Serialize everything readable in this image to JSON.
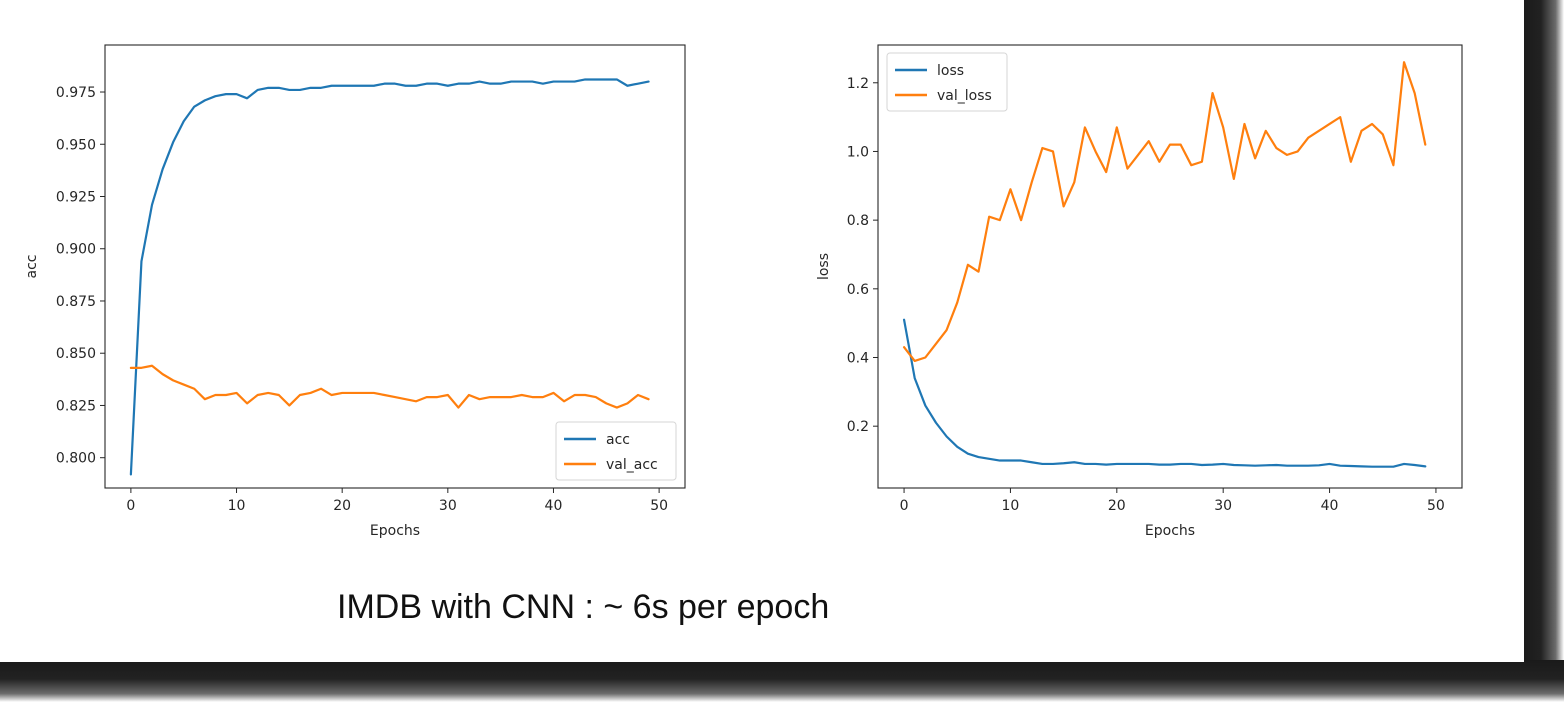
{
  "colors": {
    "series1": "#1f77b4",
    "series2": "#ff7f0e",
    "axis": "#262626"
  },
  "caption": "IMDB with CNN : ~ 6s per epoch",
  "chart_data": [
    {
      "type": "line",
      "xlabel": "Epochs",
      "ylabel": "acc",
      "xlim": [
        -2.45,
        52.45
      ],
      "ylim": [
        0.7855,
        0.9975
      ],
      "xticks": [
        0,
        10,
        20,
        30,
        40,
        50
      ],
      "yticks": [
        0.8,
        0.825,
        0.85,
        0.875,
        0.9,
        0.925,
        0.95,
        0.975
      ],
      "ytick_labels": [
        "0.800",
        "0.825",
        "0.850",
        "0.875",
        "0.900",
        "0.925",
        "0.950",
        "0.975"
      ],
      "grid": false,
      "legend_position": "lower-right",
      "series": [
        {
          "name": "acc",
          "color": "#1f77b4",
          "x": [
            0,
            1,
            2,
            3,
            4,
            5,
            6,
            7,
            8,
            9,
            10,
            11,
            12,
            13,
            14,
            15,
            16,
            17,
            18,
            19,
            20,
            21,
            22,
            23,
            24,
            25,
            26,
            27,
            28,
            29,
            30,
            31,
            32,
            33,
            34,
            35,
            36,
            37,
            38,
            39,
            40,
            41,
            42,
            43,
            44,
            45,
            46,
            47,
            48,
            49
          ],
          "y": [
            0.792,
            0.894,
            0.921,
            0.938,
            0.951,
            0.961,
            0.968,
            0.971,
            0.973,
            0.974,
            0.974,
            0.972,
            0.976,
            0.977,
            0.977,
            0.976,
            0.976,
            0.977,
            0.977,
            0.978,
            0.978,
            0.978,
            0.978,
            0.978,
            0.979,
            0.979,
            0.978,
            0.978,
            0.979,
            0.979,
            0.978,
            0.979,
            0.979,
            0.98,
            0.979,
            0.979,
            0.98,
            0.98,
            0.98,
            0.979,
            0.98,
            0.98,
            0.98,
            0.981,
            0.981,
            0.981,
            0.981,
            0.978,
            0.979,
            0.98
          ]
        },
        {
          "name": "val_acc",
          "color": "#ff7f0e",
          "x": [
            0,
            1,
            2,
            3,
            4,
            5,
            6,
            7,
            8,
            9,
            10,
            11,
            12,
            13,
            14,
            15,
            16,
            17,
            18,
            19,
            20,
            21,
            22,
            23,
            24,
            25,
            26,
            27,
            28,
            29,
            30,
            31,
            32,
            33,
            34,
            35,
            36,
            37,
            38,
            39,
            40,
            41,
            42,
            43,
            44,
            45,
            46,
            47,
            48,
            49
          ],
          "y": [
            0.843,
            0.843,
            0.844,
            0.84,
            0.837,
            0.835,
            0.833,
            0.828,
            0.83,
            0.83,
            0.831,
            0.826,
            0.83,
            0.831,
            0.83,
            0.825,
            0.83,
            0.831,
            0.833,
            0.83,
            0.831,
            0.831,
            0.831,
            0.831,
            0.83,
            0.829,
            0.828,
            0.827,
            0.829,
            0.829,
            0.83,
            0.824,
            0.83,
            0.828,
            0.829,
            0.829,
            0.829,
            0.83,
            0.829,
            0.829,
            0.831,
            0.827,
            0.83,
            0.83,
            0.829,
            0.826,
            0.824,
            0.826,
            0.83,
            0.828
          ]
        }
      ]
    },
    {
      "type": "line",
      "xlabel": "Epochs",
      "ylabel": "loss",
      "xlim": [
        -2.45,
        52.45
      ],
      "ylim": [
        0.02,
        1.31
      ],
      "xticks": [
        0,
        10,
        20,
        30,
        40,
        50
      ],
      "yticks": [
        0.2,
        0.4,
        0.6,
        0.8,
        1.0,
        1.2
      ],
      "ytick_labels": [
        "0.2",
        "0.4",
        "0.6",
        "0.8",
        "1.0",
        "1.2"
      ],
      "grid": false,
      "legend_position": "upper-left",
      "series": [
        {
          "name": "loss",
          "color": "#1f77b4",
          "x": [
            0,
            1,
            2,
            3,
            4,
            5,
            6,
            7,
            8,
            9,
            10,
            11,
            12,
            13,
            14,
            15,
            16,
            17,
            18,
            19,
            20,
            21,
            22,
            23,
            24,
            25,
            26,
            27,
            28,
            29,
            30,
            31,
            32,
            33,
            34,
            35,
            36,
            37,
            38,
            39,
            40,
            41,
            42,
            43,
            44,
            45,
            46,
            47,
            48,
            49
          ],
          "y": [
            0.51,
            0.34,
            0.26,
            0.21,
            0.17,
            0.14,
            0.12,
            0.11,
            0.105,
            0.1,
            0.1,
            0.1,
            0.095,
            0.09,
            0.09,
            0.092,
            0.095,
            0.09,
            0.09,
            0.088,
            0.09,
            0.09,
            0.09,
            0.09,
            0.088,
            0.088,
            0.09,
            0.09,
            0.087,
            0.088,
            0.09,
            0.087,
            0.086,
            0.085,
            0.086,
            0.087,
            0.085,
            0.085,
            0.085,
            0.086,
            0.09,
            0.085,
            0.084,
            0.083,
            0.082,
            0.082,
            0.082,
            0.09,
            0.087,
            0.083
          ]
        },
        {
          "name": "val_loss",
          "color": "#ff7f0e",
          "x": [
            0,
            1,
            2,
            3,
            4,
            5,
            6,
            7,
            8,
            9,
            10,
            11,
            12,
            13,
            14,
            15,
            16,
            17,
            18,
            19,
            20,
            21,
            22,
            23,
            24,
            25,
            26,
            27,
            28,
            29,
            30,
            31,
            32,
            33,
            34,
            35,
            36,
            37,
            38,
            39,
            40,
            41,
            42,
            43,
            44,
            45,
            46,
            47,
            48,
            49
          ],
          "y": [
            0.43,
            0.39,
            0.4,
            0.44,
            0.48,
            0.56,
            0.67,
            0.65,
            0.81,
            0.8,
            0.89,
            0.8,
            0.91,
            1.01,
            1.0,
            0.84,
            0.91,
            1.07,
            1.0,
            0.94,
            1.07,
            0.95,
            0.99,
            1.03,
            0.97,
            1.02,
            1.02,
            0.96,
            0.97,
            1.17,
            1.07,
            0.92,
            1.08,
            0.98,
            1.06,
            1.01,
            0.99,
            1.0,
            1.04,
            1.06,
            1.08,
            1.1,
            0.97,
            1.06,
            1.08,
            1.05,
            0.96,
            1.26,
            1.17,
            1.02
          ]
        }
      ]
    }
  ]
}
